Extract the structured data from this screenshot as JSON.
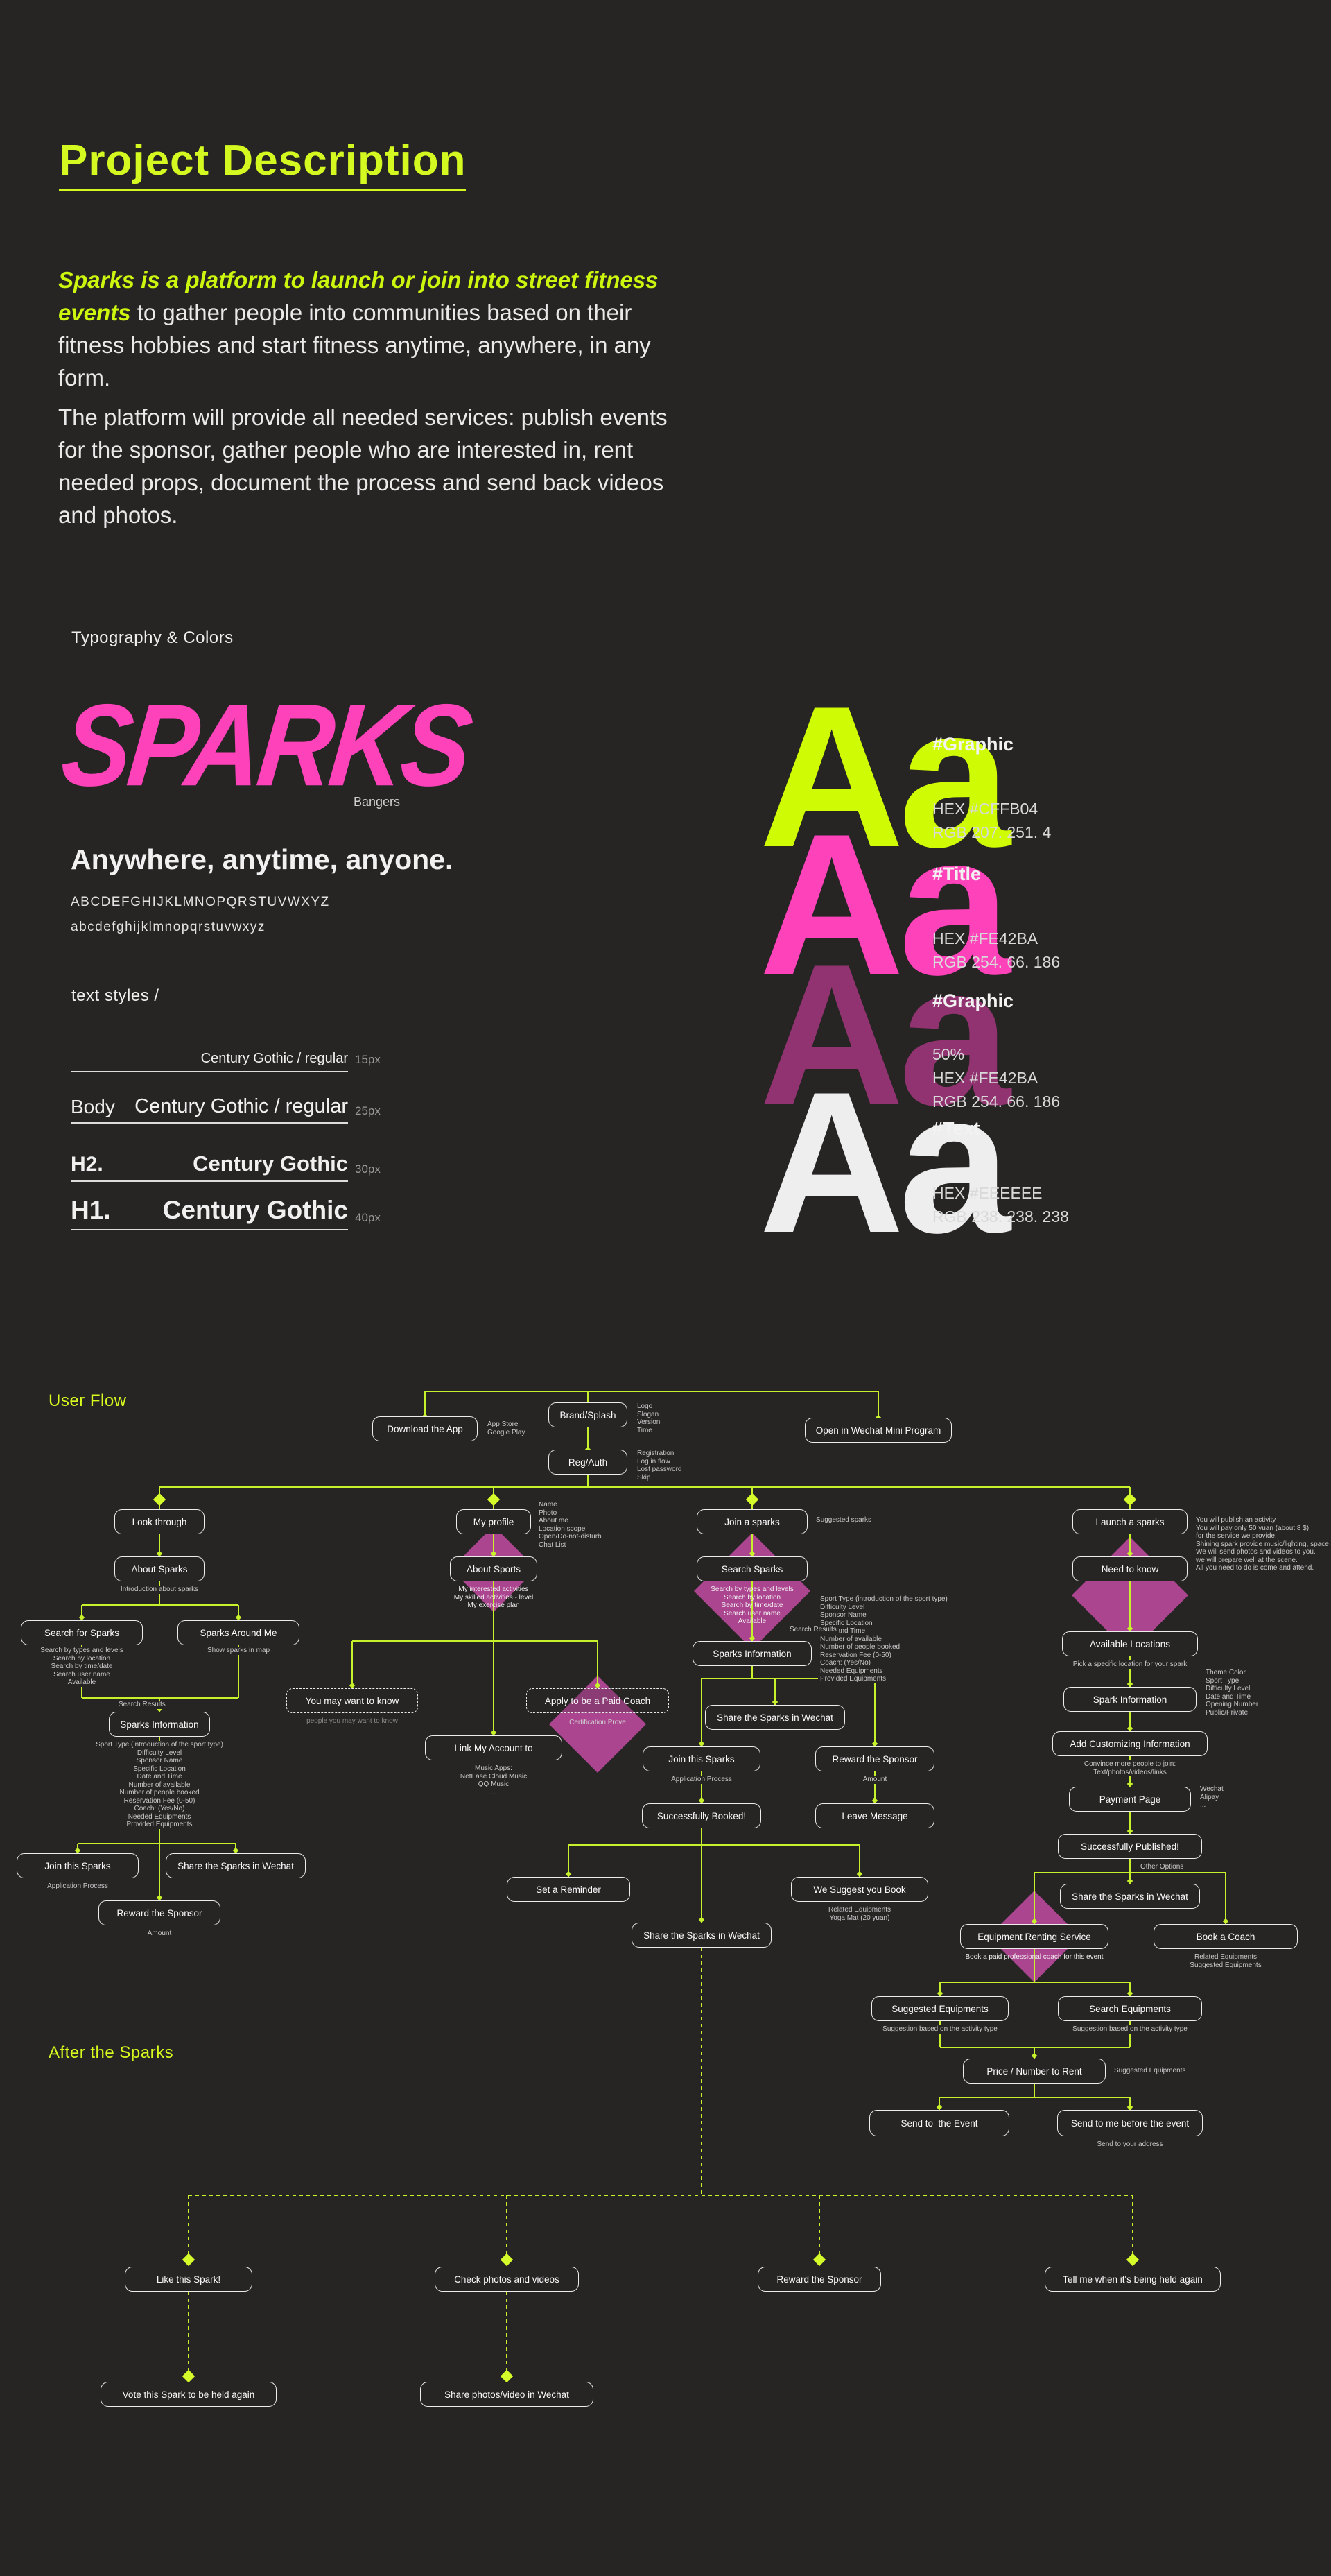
{
  "header": {
    "title": "Project Description"
  },
  "intro": {
    "p1_em": "Sparks is a platform to launch or join into street fitness events",
    "p1_rest": " to gather people into communities based on their fitness hobbies and start fitness anytime, anywhere, in any form.",
    "p2": "The platform will provide all needed services: publish events for the sponsor, gather people who are interested in, rent needed props, document the process and send back videos and photos."
  },
  "typography": {
    "section_label": "Typography & Colors",
    "logo": "SPARKS",
    "logo_font": "Bangers",
    "tagline": "Anywhere, anytime, anyone.",
    "alphabet_upper": "ABCDEFGHIJKLMNOPQRSTUVWXYZ",
    "alphabet_lower": "abcdefghijklmnopqrstuvwxyz",
    "text_styles_label": "text styles /",
    "rows": [
      {
        "name": "",
        "font": "Century Gothic / regular",
        "size": "15px"
      },
      {
        "name": "Body",
        "font": "Century Gothic / regular",
        "size": "25px"
      },
      {
        "name": "H2.",
        "font": "Century Gothic",
        "size": "30px"
      },
      {
        "name": "H1.",
        "font": "Century Gothic",
        "size": "40px"
      }
    ]
  },
  "palette": [
    {
      "sample": "Aa",
      "name": "#Graphic",
      "color": "#CFFB04",
      "lines": [
        "HEX #CFFB04",
        "RGB 207. 251. 4"
      ]
    },
    {
      "sample": "Aa",
      "name": "#Title",
      "color": "#FE42BA",
      "lines": [
        "HEX #FE42BA",
        "RGB 254. 66. 186"
      ]
    },
    {
      "sample": "Aa",
      "name": "#Graphic",
      "color": "#FE42BA",
      "lines": [
        "50%",
        "HEX #FE42BA",
        "RGB 254. 66. 186"
      ]
    },
    {
      "sample": "Aa",
      "name": "#Text",
      "color": "#EEEEEE",
      "lines": [
        "HEX #EEEEEE",
        "RGB 238. 238. 238"
      ]
    }
  ],
  "flow": {
    "section_label": "User Flow",
    "after_label": "After the Sparks",
    "accent_line": "#c7f12b",
    "diamond_pink": "#ac4590",
    "nodes": [
      {
        "id": "download",
        "label": "Download the App",
        "notes": [
          "App Store",
          "Google Play"
        ]
      },
      {
        "id": "brand",
        "label": "Brand/Splash",
        "notes": [
          "Logo",
          "Slogan",
          "Version",
          "Time"
        ]
      },
      {
        "id": "regauth",
        "label": "Reg/Auth",
        "notes": [
          "Registration",
          "Log in flow",
          "Lost password",
          "Skip"
        ]
      },
      {
        "id": "openwechat",
        "label": "Open in Wechat Mini Program"
      },
      {
        "id": "look",
        "label": "Look through"
      },
      {
        "id": "aboutsparks",
        "label": "About Sparks",
        "notes": [
          "Introduction about sparks"
        ]
      },
      {
        "id": "searchforsparks",
        "label": "Search for Sparks",
        "notes": [
          "Search by types and levels",
          "Search by location",
          "Search by time/date",
          "Search user name",
          "Available"
        ]
      },
      {
        "id": "sparksaroundme",
        "label": "Sparks Around Me",
        "notes": [
          "Show sparks in map"
        ]
      },
      {
        "id": "sparksinfo1",
        "label": "Sparks Information",
        "notes": [
          "Sport Type (introduction of the sport type)",
          "Difficulty Level",
          "Sponsor Name",
          "Specific Location",
          "Date and Time",
          "Number of available",
          "Number of people booked",
          "Reservation Fee (0-50)",
          "Coach: (Yes/No)",
          "Needed Equipments",
          "Provided Equipments"
        ]
      },
      {
        "id": "jointhis1",
        "label": "Join this Sparks",
        "notes": [
          "Application Process"
        ]
      },
      {
        "id": "sharewechat1",
        "label": "Share the Sparks in Wechat"
      },
      {
        "id": "rewardsponsor1",
        "label": "Reward the Sponsor",
        "notes": [
          "Amount"
        ]
      },
      {
        "id": "myprofile",
        "label": "My profile",
        "notes": [
          "Name",
          "Photo",
          "About me",
          "Location scope",
          "Open/Do-not-disturb",
          "Chat List"
        ]
      },
      {
        "id": "aboutsports",
        "label": "About Sports",
        "notes": [
          "My interested activities",
          "My skilled activities - level",
          "My exercise plan"
        ]
      },
      {
        "id": "youmaywant",
        "label": "You may want to know",
        "style": "dashed",
        "notes": [
          "people you may want to know"
        ]
      },
      {
        "id": "applycoach",
        "label": "Apply to be a Paid Coach",
        "style": "dashed",
        "notes": [
          "Certification Prove"
        ]
      },
      {
        "id": "linkaccount",
        "label": "Link My Account to",
        "notes": [
          "Music Apps:",
          "NetEase Cloud Music",
          "QQ Music",
          "..."
        ]
      },
      {
        "id": "joinasparks",
        "label": "Join a sparks",
        "notes": [
          "Suggested sparks"
        ]
      },
      {
        "id": "searchsparks",
        "label": "Search Sparks",
        "notes": [
          "Search by types and levels",
          "Search by location",
          "Search by time/date",
          "Search user name",
          "Available"
        ]
      },
      {
        "id": "sparksinfo2",
        "label": "Sparks Information",
        "notes": [
          "Sport Type (introduction of the sport type)",
          "Difficulty Level",
          "Sponsor Name",
          "Specific Location",
          "Date and Time",
          "Number of available",
          "Number of people booked",
          "Reservation Fee (0-50)",
          "Coach: (Yes/No)",
          "Needed Equipments",
          "Provided Equipments"
        ]
      },
      {
        "id": "sharewechat2",
        "label": "Share the Sparks in Wechat"
      },
      {
        "id": "jointhis2",
        "label": "Join this Sparks",
        "notes": [
          "Application Process"
        ]
      },
      {
        "id": "rewardsponsor2",
        "label": "Reward the Sponsor",
        "notes": [
          "Amount"
        ]
      },
      {
        "id": "successbooked",
        "label": "Successfully Booked!"
      },
      {
        "id": "leavemessage",
        "label": "Leave Message"
      },
      {
        "id": "setreminder",
        "label": "Set a Reminder"
      },
      {
        "id": "wesuggest",
        "label": "We Suggest you Book",
        "notes": [
          "Related Equipments",
          "Yoga Mat (20 yuan)",
          "..."
        ]
      },
      {
        "id": "sharewechat3",
        "label": "Share the Sparks in Wechat"
      },
      {
        "id": "launch",
        "label": "Launch a sparks",
        "notes": [
          "You will publish an activity",
          "You will pay only 50 yuan (about 8 $)",
          "for the service we provide:",
          "Shining spark provide music/lighting, space divider.",
          "We will send photos and videos to you.",
          "we will prepare well at the scene.",
          "All you need to do is come and attend."
        ]
      },
      {
        "id": "needtoknow",
        "label": "Need to know"
      },
      {
        "id": "availablelocations",
        "label": "Available Locations",
        "notes": [
          "Pick a specific location for your spark"
        ]
      },
      {
        "id": "sparkinfo4",
        "label": "Spark Information",
        "notes": [
          "Theme Color",
          "Sport Type",
          "Difficulty Level",
          "Date and Time",
          "Opening Number",
          "Public/Private"
        ]
      },
      {
        "id": "addcustom",
        "label": "Add Customizing Information",
        "notes": [
          "Convince more people to join:",
          "Text/photos/videos/links"
        ]
      },
      {
        "id": "payment",
        "label": "Payment Page",
        "notes": [
          "Wechat",
          "Alipay",
          "..."
        ]
      },
      {
        "id": "successpub",
        "label": "Successfully Published!"
      },
      {
        "id": "sharewechat4",
        "label": "Share the Sparks in Wechat"
      },
      {
        "id": "equipmentrent",
        "label": "Equipment Renting Service",
        "notes": [
          "Book a paid professional coach for this event"
        ]
      },
      {
        "id": "bookcoach",
        "label": "Book a Coach",
        "notes": [
          "Related Equipments",
          "Suggested Equipments"
        ]
      },
      {
        "id": "suggestedequip",
        "label": "Suggested Equipments",
        "notes": [
          "Suggestion based on the activity type"
        ]
      },
      {
        "id": "searchequip",
        "label": "Search Equipments",
        "notes": [
          "Suggestion based on the activity type"
        ]
      },
      {
        "id": "pricenumber",
        "label": "Price / Number to Rent",
        "notes": [
          "Suggested Equipments"
        ]
      },
      {
        "id": "sendtoevent",
        "label": "Send to  the Event"
      },
      {
        "id": "sendtome",
        "label": "Send to me before the event",
        "notes": [
          "Send to your address"
        ]
      },
      {
        "id": "like",
        "label": "Like this Spark!"
      },
      {
        "id": "check",
        "label": "Check photos and videos"
      },
      {
        "id": "reward3",
        "label": "Reward the Sponsor"
      },
      {
        "id": "tellme",
        "label": "Tell me when it's being held again"
      },
      {
        "id": "vote",
        "label": "Vote this Spark to be held again"
      },
      {
        "id": "sharephotos",
        "label": "Share photos/video in Wechat"
      }
    ],
    "labels": [
      {
        "id": "searchresults1",
        "text": "Search Results"
      },
      {
        "id": "searchresults2",
        "text": "Search Results"
      },
      {
        "id": "otheroptions",
        "text": "Other Options"
      }
    ]
  }
}
